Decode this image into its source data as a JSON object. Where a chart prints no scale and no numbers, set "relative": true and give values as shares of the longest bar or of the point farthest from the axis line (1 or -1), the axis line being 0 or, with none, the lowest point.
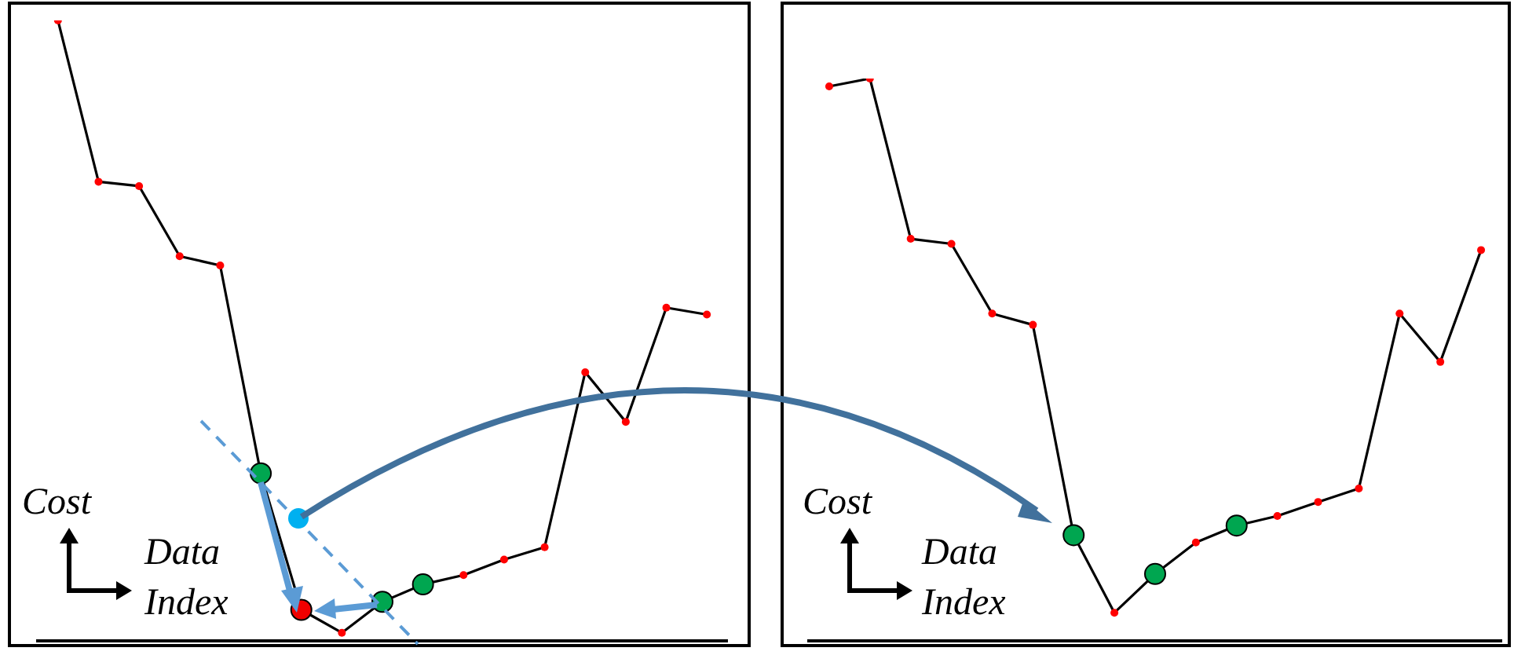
{
  "chart_data": [
    {
      "type": "line",
      "xlabel": "Data Index",
      "ylabel": "Cost",
      "relative": true,
      "marker": "circle",
      "categories": [
        null,
        null,
        null,
        null,
        null,
        null,
        null,
        null,
        null,
        null,
        null,
        null,
        null,
        null,
        null,
        null,
        null
      ],
      "series": [
        {
          "color": "#000000",
          "colors": [
            "#ff0000",
            "#ff0000",
            "#ff0000",
            "#ff0000",
            "#ff0000",
            "#00a650",
            "#f00000",
            "#ff0000",
            "#00a650",
            "#00a650",
            "#ff0000",
            "#ff0000",
            "#ff0000",
            "#ff0000",
            "#ff0000",
            "#ff0000",
            "#ff0000"
          ],
          "values": [
            1,
            0.74,
            0.733,
            0.62,
            0.605,
            0.27,
            0.05,
            0.013,
            0.063,
            0.091,
            0.106,
            0.131,
            0.151,
            0.433,
            0.353,
            0.537,
            0.526
          ]
        }
      ]
    },
    {
      "type": "line",
      "xlabel": "Data Index",
      "ylabel": "Cost",
      "relative": true,
      "marker": "circle",
      "categories": [
        null,
        null,
        null,
        null,
        null,
        null,
        null,
        null,
        null,
        null,
        null,
        null,
        null,
        null,
        null,
        null,
        null
      ],
      "series": [
        {
          "color": "#000000",
          "colors": [
            "#ff0000",
            "#ff0000",
            "#ff0000",
            "#ff0000",
            "#ff0000",
            "#ff0000",
            "#00a650",
            "#ff0000",
            "#00a650",
            "#ff0000",
            "#00a650",
            "#ff0000",
            "#ff0000",
            "#ff0000",
            "#ff0000",
            "#ff0000",
            "#ff0000"
          ],
          "values": [
            0.986,
            1,
            0.715,
            0.706,
            0.582,
            0.562,
            0.188,
            0.05,
            0.119,
            0.175,
            0.205,
            0.222,
            0.247,
            0.271,
            0.582,
            0.496,
            0.695
          ]
        }
      ]
    }
  ]
}
